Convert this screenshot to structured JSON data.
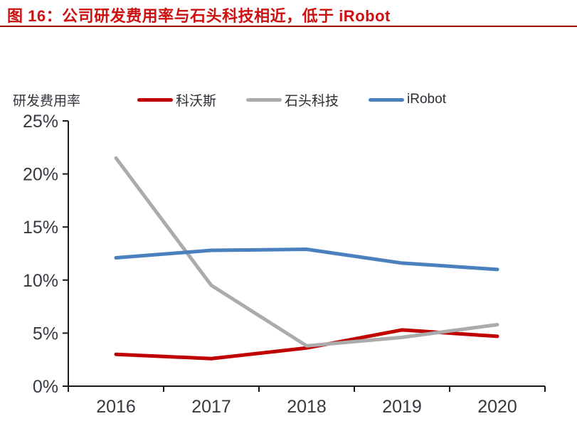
{
  "header": {
    "title": "图 16：公司研发费用率与石头科技相近，低于 iRobot",
    "title_color": "#CC1111",
    "rule_color": "#A40000"
  },
  "chart_data": {
    "type": "line",
    "title": "",
    "ylabel": "研发费用率",
    "xlabel": "",
    "categories": [
      "2016",
      "2017",
      "2018",
      "2019",
      "2020"
    ],
    "series": [
      {
        "key": "ecovacs",
        "name": "科沃斯",
        "color": "#C00000",
        "values": [
          3.0,
          2.6,
          3.6,
          5.3,
          4.7
        ]
      },
      {
        "key": "roborock",
        "name": "石头科技",
        "color": "#ABABAB",
        "values": [
          21.5,
          9.5,
          3.8,
          4.6,
          5.8
        ]
      },
      {
        "key": "irobot",
        "name": "iRobot",
        "color": "#4A80BD",
        "values": [
          12.1,
          12.8,
          12.9,
          11.6,
          11.0
        ]
      }
    ],
    "ylim": [
      0,
      25
    ],
    "ytick_step": 5,
    "ytick_labels": [
      "0%",
      "5%",
      "10%",
      "15%",
      "20%",
      "25%"
    ],
    "grid": false,
    "legend_position": "top",
    "axis_color": "#1A1A1A",
    "tick_label_color": "#343A40"
  }
}
